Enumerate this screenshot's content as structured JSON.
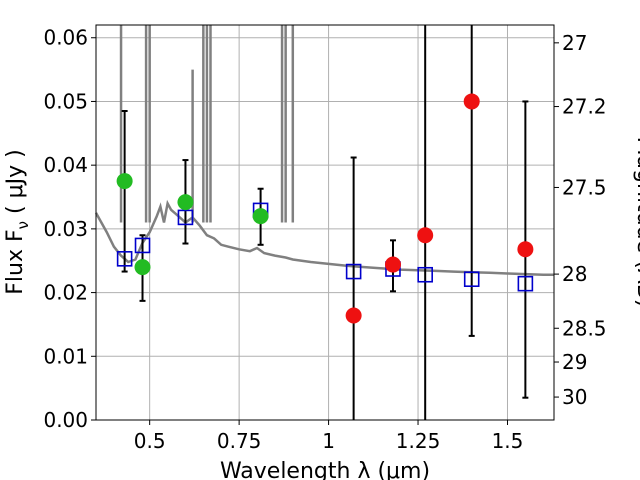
{
  "chart_data": {
    "type": "scatter",
    "xlabel": "Wavelength  λ (μm)",
    "ylabel": "Flux  F",
    "ylabel_sub": "ν",
    "ylabel_unit": "  ( μJy )",
    "ylabel_right": "Magnitude (AB)",
    "xlim": [
      0.35,
      1.63
    ],
    "ylim": [
      0.0,
      0.062
    ],
    "grid": true,
    "x_ticks": [
      {
        "value": 0.5,
        "label": "0.5"
      },
      {
        "value": 0.75,
        "label": "0.75"
      },
      {
        "value": 1.0,
        "label": "1"
      },
      {
        "value": 1.25,
        "label": "1.25"
      },
      {
        "value": 1.5,
        "label": "1.5"
      }
    ],
    "y_ticks": [
      {
        "value": 0.0,
        "label": "0.00"
      },
      {
        "value": 0.01,
        "label": "0.01"
      },
      {
        "value": 0.02,
        "label": "0.02"
      },
      {
        "value": 0.03,
        "label": "0.03"
      },
      {
        "value": 0.04,
        "label": "0.04"
      },
      {
        "value": 0.05,
        "label": "0.05"
      },
      {
        "value": 0.06,
        "label": "0.06"
      }
    ],
    "right_ticks": [
      {
        "flux": 0.0592,
        "label": "27"
      },
      {
        "flux": 0.0492,
        "label": "27.2"
      },
      {
        "flux": 0.0365,
        "label": "27.5"
      },
      {
        "flux": 0.0229,
        "label": "28"
      },
      {
        "flux": 0.0144,
        "label": "28.5"
      },
      {
        "flux": 0.0091,
        "label": "29"
      },
      {
        "flux": 0.0036,
        "label": "30"
      }
    ],
    "series": [
      {
        "kind": "model",
        "color": "#808080",
        "x": [
          0.35,
          0.38,
          0.4,
          0.42,
          0.44,
          0.46,
          0.47,
          0.48,
          0.5,
          0.52,
          0.53,
          0.54,
          0.55,
          0.56,
          0.58,
          0.6,
          0.62,
          0.64,
          0.66,
          0.68,
          0.7,
          0.72,
          0.75,
          0.78,
          0.8,
          0.82,
          0.85,
          0.88,
          0.9,
          0.95,
          1.0,
          1.05,
          1.1,
          1.15,
          1.2,
          1.25,
          1.3,
          1.35,
          1.4,
          1.45,
          1.5,
          1.55,
          1.6,
          1.63
        ],
        "y": [
          0.0325,
          0.0295,
          0.0272,
          0.0258,
          0.0248,
          0.0252,
          0.0265,
          0.0278,
          0.0295,
          0.032,
          0.0335,
          0.031,
          0.034,
          0.033,
          0.032,
          0.031,
          0.0318,
          0.0305,
          0.029,
          0.0285,
          0.0275,
          0.0272,
          0.0268,
          0.0265,
          0.027,
          0.0262,
          0.0258,
          0.0255,
          0.0252,
          0.0248,
          0.0245,
          0.0242,
          0.024,
          0.0238,
          0.0236,
          0.0235,
          0.0234,
          0.0233,
          0.0232,
          0.0231,
          0.023,
          0.0229,
          0.0228,
          0.0228
        ]
      },
      {
        "kind": "model_lines",
        "color": "#808080",
        "x": [
          0.42,
          0.49,
          0.5,
          0.62,
          0.65,
          0.66,
          0.67,
          0.87,
          0.88,
          0.9
        ],
        "top": [
          0.062,
          0.062,
          0.062,
          0.055,
          0.062,
          0.062,
          0.062,
          0.062,
          0.062,
          0.062
        ]
      },
      {
        "kind": "model_points",
        "color": "#0000cc",
        "marker": "open-square",
        "x": [
          0.43,
          0.48,
          0.6,
          0.81,
          1.07,
          1.18,
          1.27,
          1.4,
          1.55
        ],
        "y": [
          0.0253,
          0.0274,
          0.0318,
          0.0329,
          0.0233,
          0.0237,
          0.0228,
          0.0221,
          0.0214
        ]
      },
      {
        "kind": "detections",
        "color": "#22bb22",
        "marker": "filled-circle",
        "x": [
          0.43,
          0.48,
          0.6,
          0.81
        ],
        "y": [
          0.0375,
          0.024,
          0.0342,
          0.032
        ],
        "err_low": [
          0.0233,
          0.0187,
          0.0277,
          0.0275
        ],
        "err_high": [
          0.0485,
          0.029,
          0.0408,
          0.0363
        ]
      },
      {
        "kind": "low_significance",
        "color": "#ee1111",
        "marker": "filled-circle",
        "x": [
          1.07,
          1.18,
          1.27,
          1.4,
          1.55
        ],
        "y": [
          0.0164,
          0.0244,
          0.029,
          0.05,
          0.0268
        ],
        "err_low": [
          0.0,
          0.0202,
          0.0,
          0.0132,
          0.0035
        ],
        "err_high": [
          0.0412,
          0.0282,
          0.062,
          0.062,
          0.05
        ]
      }
    ]
  }
}
